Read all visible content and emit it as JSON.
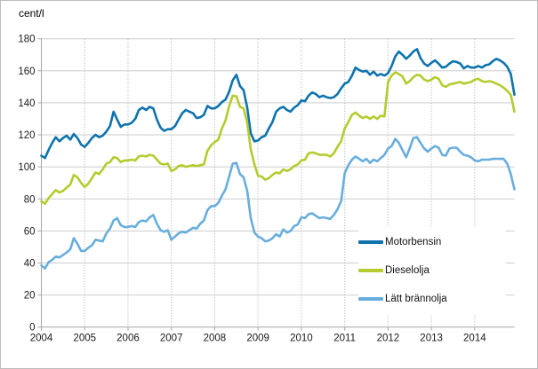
{
  "figure": {
    "unit_label": "cent/l"
  },
  "chart_data": {
    "type": "line",
    "title": "",
    "ylabel": "cent/l",
    "xlabel": "",
    "ylim": [
      0,
      180
    ],
    "y_tick_step": 20,
    "y_ticks": [
      0,
      20,
      40,
      60,
      80,
      100,
      120,
      140,
      160,
      180
    ],
    "x_ticks": [
      2004,
      2005,
      2006,
      2007,
      2008,
      2009,
      2010,
      2011,
      2012,
      2013,
      2014
    ],
    "x_interval": "month",
    "x_start": "2004-01",
    "x_end": "2014-12",
    "grid": {
      "horizontal": "solid",
      "vertical": "dotted-yearly"
    },
    "legend_position": "inside-right",
    "axis_color": "#a6a6a6",
    "gridline_color": "#cdcdcd",
    "dotted_grid_color": "#ababab",
    "text_color": "#1a1a1a",
    "series": [
      {
        "name": "Motorbensin",
        "color": "#0e73ad",
        "values": [
          107,
          105.5,
          110.5,
          115,
          118.5,
          116,
          118,
          119.5,
          117,
          120.5,
          118,
          114,
          112.5,
          115,
          118,
          120,
          118.5,
          119.5,
          122,
          125.5,
          134.5,
          129.5,
          125,
          126.5,
          126.5,
          127.5,
          130,
          135.5,
          137,
          135.5,
          137.5,
          136.5,
          129.5,
          124.5,
          122.5,
          123.5,
          123.5,
          125.5,
          129.5,
          133.5,
          135.5,
          134.5,
          133.5,
          130.5,
          131,
          132.5,
          138,
          136.5,
          136.5,
          138,
          140.5,
          142,
          147,
          154,
          157.5,
          150.5,
          148,
          137,
          121,
          116,
          116.5,
          118.5,
          119.5,
          124,
          128,
          134.5,
          136.5,
          137.5,
          135.5,
          134.5,
          137,
          138.5,
          141.5,
          141,
          144.5,
          146.5,
          145.5,
          143.5,
          144.5,
          143.5,
          143,
          143.5,
          145.5,
          149,
          152,
          153,
          157,
          162,
          160.5,
          159.5,
          160,
          157.5,
          159.5,
          157,
          158,
          157,
          158.5,
          163,
          169,
          172,
          170,
          167.5,
          169.5,
          172,
          173.5,
          168,
          164.5,
          163,
          165,
          166.5,
          164.5,
          162,
          162.5,
          164.5,
          166,
          165.5,
          164.5,
          161.5,
          163,
          162,
          162,
          163,
          162,
          163.5,
          164,
          166,
          167.5,
          166.5,
          165,
          162.5,
          158,
          145
        ]
      },
      {
        "name": "Dieselolja",
        "color": "#b5cb2e",
        "values": [
          78.5,
          77,
          80.5,
          83,
          85.5,
          84,
          85,
          87,
          89,
          95,
          93.5,
          90,
          87.5,
          89.5,
          93,
          96.5,
          95.5,
          98.5,
          102,
          103,
          106,
          105.5,
          103,
          104,
          104,
          104.5,
          104,
          106.5,
          107,
          106.5,
          107.5,
          107,
          104.5,
          102,
          101.5,
          102,
          97.5,
          98.5,
          100.5,
          101,
          100,
          100.5,
          101,
          100.5,
          101,
          101.5,
          110,
          113.5,
          115.5,
          117,
          124,
          129,
          138,
          144.5,
          144,
          137.5,
          136.5,
          127.5,
          111,
          101.5,
          94.5,
          94,
          92,
          93,
          95,
          96.5,
          96,
          98.5,
          97.5,
          98.5,
          100.5,
          101.5,
          104,
          104.5,
          108.5,
          109,
          108.5,
          107.5,
          107.5,
          107.5,
          106.5,
          108.5,
          112.5,
          116,
          124,
          128,
          132.5,
          134,
          132,
          130.5,
          131.5,
          130,
          131.5,
          130,
          132,
          131.5,
          153,
          157,
          159,
          158,
          156.5,
          152,
          153.5,
          156,
          157.5,
          157,
          154.5,
          153.5,
          154.5,
          156,
          155,
          151,
          150,
          151.5,
          152,
          152.5,
          153,
          152,
          152.5,
          153,
          154.5,
          155,
          153.5,
          153,
          153.5,
          153,
          152,
          151,
          149.5,
          147.5,
          145,
          134.5
        ]
      },
      {
        "name": "Lätt brännolja",
        "color": "#68aedd",
        "values": [
          38.5,
          36.5,
          40.5,
          42,
          44,
          43.5,
          45,
          46.5,
          48.5,
          55.5,
          52,
          47.5,
          47.5,
          49.5,
          51,
          54.5,
          54,
          53.5,
          58.5,
          61.5,
          66.5,
          68,
          63.5,
          62.5,
          62.5,
          63,
          62.5,
          65.5,
          66.5,
          66,
          68.5,
          70,
          64.5,
          60.5,
          59.5,
          60.5,
          54.5,
          56.5,
          58.5,
          59.5,
          59,
          60.5,
          62,
          61.5,
          64.5,
          66.5,
          73,
          75.5,
          75.5,
          77.5,
          82,
          86,
          94,
          102,
          102.5,
          95.5,
          93.5,
          85,
          68,
          59,
          56.5,
          55.5,
          53.5,
          54,
          55.5,
          58,
          56.5,
          61,
          59,
          60,
          63,
          64,
          68.5,
          68,
          70.5,
          71,
          69.5,
          68,
          68.5,
          68,
          67.5,
          70,
          73.5,
          78.5,
          96,
          101,
          104.5,
          106.5,
          105,
          103.5,
          105,
          102.5,
          104.5,
          103.5,
          105.5,
          107.5,
          111.5,
          113,
          117.5,
          115,
          110.5,
          106,
          111.5,
          118,
          118.5,
          115,
          111.5,
          109.5,
          111.5,
          113,
          112,
          107.5,
          107,
          111.5,
          112,
          112,
          109.5,
          107.5,
          107,
          106,
          104,
          103.5,
          104.5,
          104.5,
          104.5,
          105,
          105,
          105,
          105,
          102,
          95.5,
          86
        ]
      }
    ]
  }
}
